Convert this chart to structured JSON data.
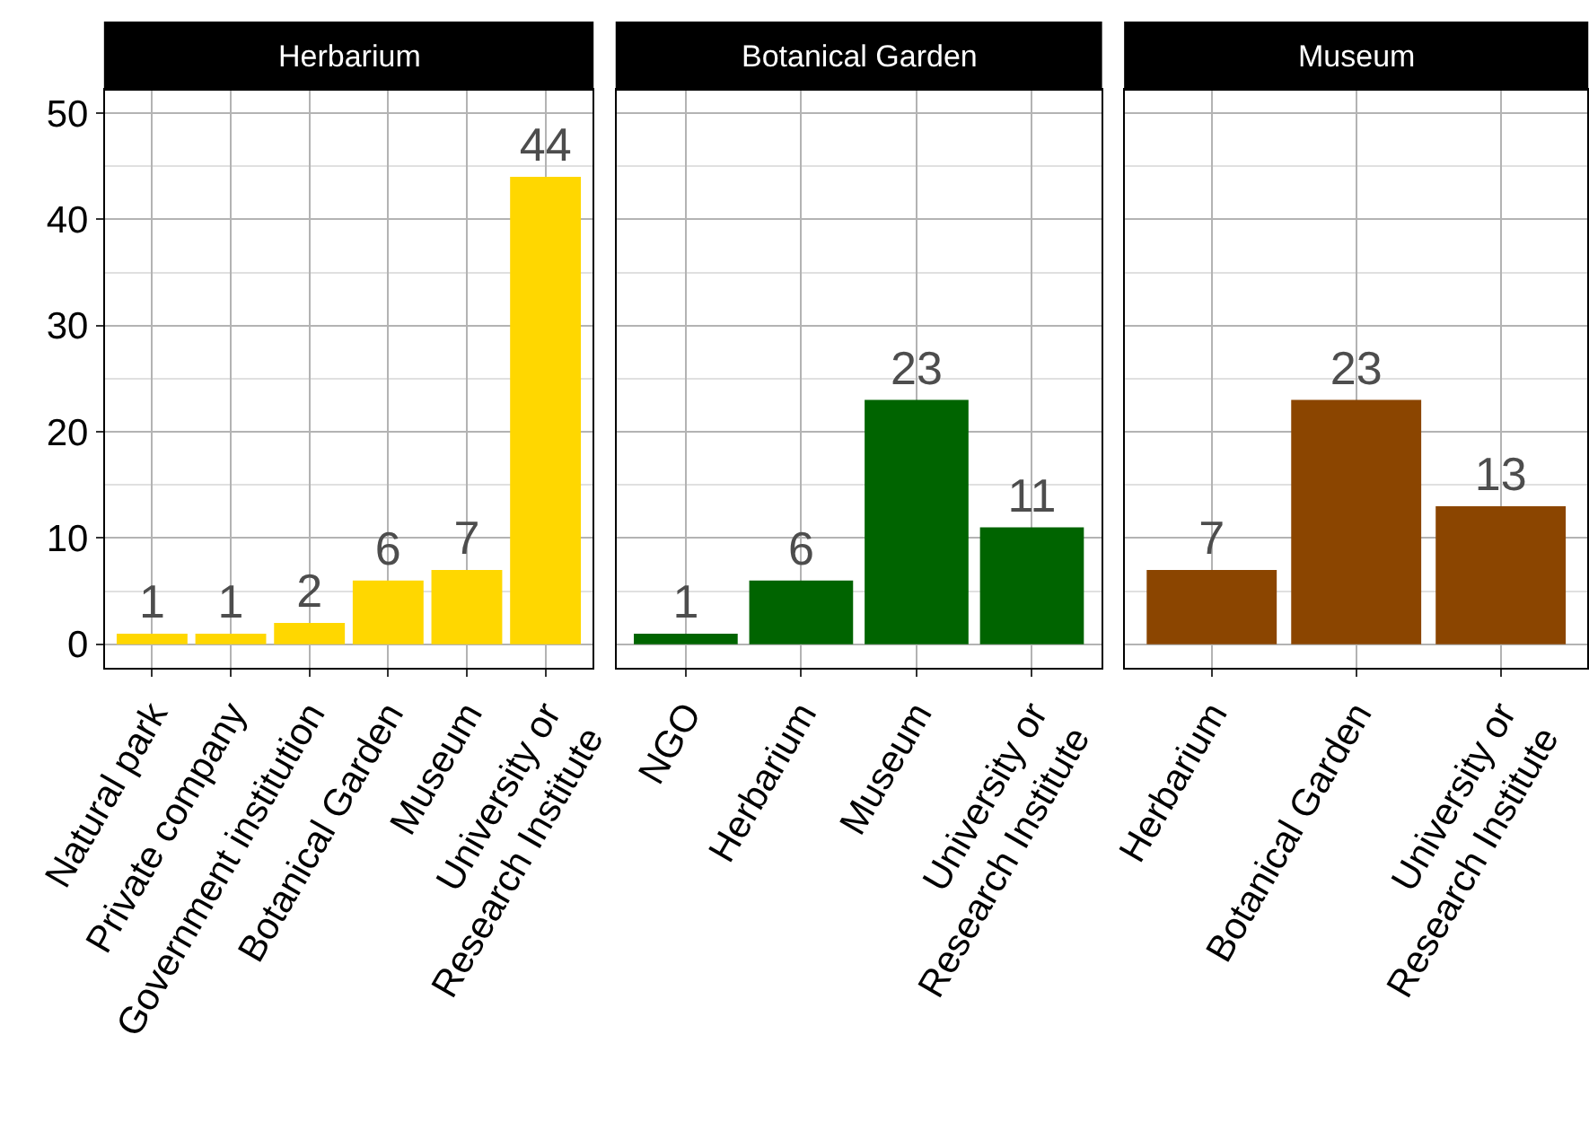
{
  "chart_data": [
    {
      "type": "bar",
      "title": "Herbarium",
      "categories": [
        "Natural park",
        "Private company",
        "Government institution",
        "Botanical Garden",
        "Museum",
        "University or\nResearch Institute"
      ],
      "values": [
        1,
        1,
        2,
        6,
        7,
        44
      ],
      "color": "#ffd700",
      "ylim": [
        -2.2,
        52.2
      ],
      "yticks": [
        0,
        10,
        20,
        30,
        40,
        50
      ],
      "data_labels": true,
      "grid": true
    },
    {
      "type": "bar",
      "title": "Botanical Garden",
      "categories": [
        "NGO",
        "Herbarium",
        "Museum",
        "University or\nResearch Institute"
      ],
      "values": [
        1,
        6,
        23,
        11
      ],
      "color": "#006400",
      "ylim": [
        -2.2,
        52.2
      ],
      "yticks": [
        0,
        10,
        20,
        30,
        40,
        50
      ],
      "data_labels": true,
      "grid": true,
      "tick_labels": "x"
    },
    {
      "type": "bar",
      "title": "Museum",
      "categories": [
        "Herbarium",
        "Botanical Garden",
        "University or\nResearch Institute"
      ],
      "values": [
        7,
        23,
        13
      ],
      "color": "#8b4500",
      "ylim": [
        -2.2,
        52.2
      ],
      "yticks": [
        0,
        10,
        20,
        30,
        40,
        50
      ],
      "data_labels": true,
      "grid": true,
      "tick_labels": "x"
    }
  ]
}
